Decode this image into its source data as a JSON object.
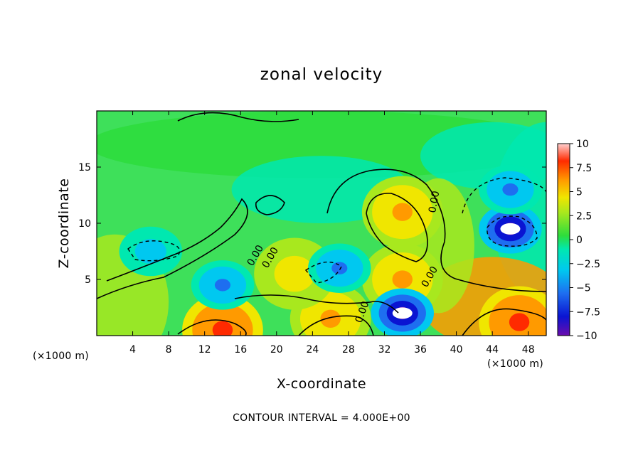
{
  "chart_data": {
    "type": "heatmap",
    "title": "zonal velocity",
    "xlabel": "X-coordinate",
    "ylabel": "Z-coordinate",
    "x_unit_note": "(×1000 m)",
    "x_unit_note_right": "(×1000 m)",
    "x_ticks": [
      4,
      8,
      12,
      16,
      20,
      24,
      28,
      32,
      36,
      40,
      44,
      48
    ],
    "xlim": [
      0,
      50
    ],
    "y_ticks": [
      5,
      10,
      15
    ],
    "ylim": [
      0,
      20
    ],
    "colorbar": {
      "ticks": [
        10,
        7.5,
        5,
        2.5,
        0,
        -2.5,
        -5,
        -7.5,
        -10
      ],
      "tick_labels": [
        "10",
        "7.5",
        "5",
        "2.5",
        "0",
        "−2.5",
        "−5",
        "−7.5",
        "−10"
      ],
      "range": [
        -10,
        10
      ],
      "colormap": [
        "#6a0dad",
        "#0a14d2",
        "#1e6ef0",
        "#00c8f0",
        "#00e8b0",
        "#2ddc3c",
        "#a8e81e",
        "#f0e600",
        "#ff9a00",
        "#ff2a00",
        "#ffd0d0"
      ]
    },
    "contour_labels": [
      "0.00",
      "0.00",
      "0.00",
      "0.00",
      "0.00"
    ],
    "features": [
      {
        "kind": "max",
        "x": 34,
        "z": 11,
        "value": 7
      },
      {
        "kind": "max",
        "x": 14,
        "z": 0.5,
        "value": 10
      },
      {
        "kind": "max",
        "x": 26,
        "z": 1.5,
        "value": 7
      },
      {
        "kind": "max",
        "x": 47,
        "z": 1.2,
        "value": 10
      },
      {
        "kind": "max",
        "x": 34,
        "z": 5,
        "value": 6
      },
      {
        "kind": "max",
        "x": 22,
        "z": 5.5,
        "value": 5
      },
      {
        "kind": "min",
        "x": 46,
        "z": 9.5,
        "value": -11
      },
      {
        "kind": "min",
        "x": 34,
        "z": 2,
        "value": -11
      },
      {
        "kind": "min",
        "x": 14,
        "z": 4.5,
        "value": -7
      },
      {
        "kind": "min",
        "x": 27,
        "z": 6,
        "value": -6
      },
      {
        "kind": "min",
        "x": 46,
        "z": 13,
        "value": -6
      },
      {
        "kind": "min",
        "x": 6,
        "z": 7.5,
        "value": -5
      }
    ],
    "contour_interval_note": "CONTOUR INTERVAL = 4.000E+00",
    "grid": false,
    "legend": "colorbar right"
  }
}
